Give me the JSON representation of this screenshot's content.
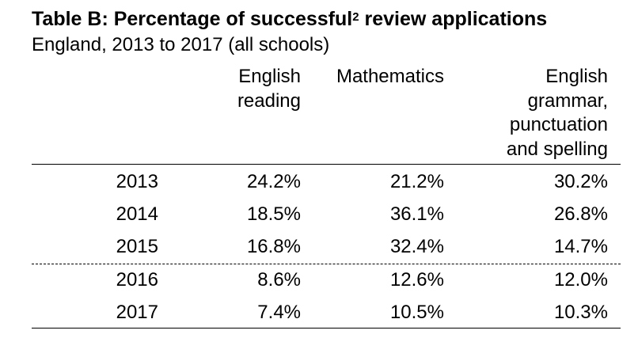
{
  "title": {
    "text_before": "Table B: Percentage of successful",
    "footnote": "2",
    "text_after": " review applications"
  },
  "subtitle": "England, 2013 to 2017 (all schools)",
  "columns": [
    "English\nreading",
    "Mathematics",
    "English\ngrammar,\npunctuation\nand spelling"
  ],
  "rows": [
    {
      "year": "2013",
      "values": [
        "24.2%",
        "21.2%",
        "30.2%"
      ]
    },
    {
      "year": "2014",
      "values": [
        "18.5%",
        "36.1%",
        "26.8%"
      ]
    },
    {
      "year": "2015",
      "values": [
        "16.8%",
        "32.4%",
        "14.7%"
      ]
    },
    {
      "year": "2016",
      "values": [
        "8.6%",
        "12.6%",
        "12.0%"
      ]
    },
    {
      "year": "2017",
      "values": [
        "7.4%",
        "10.5%",
        "10.3%"
      ]
    }
  ]
}
